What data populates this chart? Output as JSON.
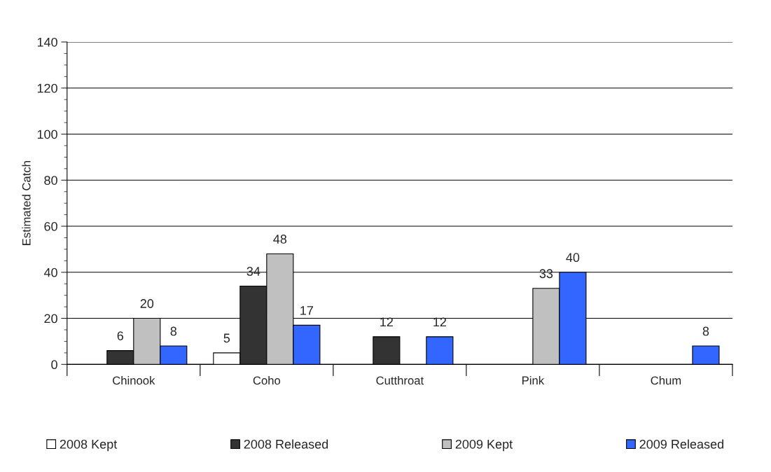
{
  "chart_data": {
    "type": "bar",
    "ylabel": "Estimated Catch",
    "categories": [
      "Chinook",
      "Coho",
      "Cutthroat",
      "Pink",
      "Chum"
    ],
    "series": [
      {
        "name": "2008 Kept",
        "color": "#ffffff",
        "values": [
          null,
          5,
          null,
          null,
          null
        ]
      },
      {
        "name": "2008 Released",
        "color": "#333333",
        "values": [
          6,
          34,
          12,
          null,
          null
        ]
      },
      {
        "name": "2009 Kept",
        "color": "#c0c0c0",
        "values": [
          20,
          48,
          null,
          33,
          null
        ]
      },
      {
        "name": "2009 Released",
        "color": "#3366ff",
        "values": [
          8,
          17,
          12,
          40,
          8
        ]
      }
    ],
    "ylim": [
      0,
      140
    ],
    "yticks": [
      0,
      20,
      40,
      60,
      80,
      100,
      120,
      140
    ],
    "grid": "y",
    "legend": "bottom",
    "data_labels": true
  }
}
